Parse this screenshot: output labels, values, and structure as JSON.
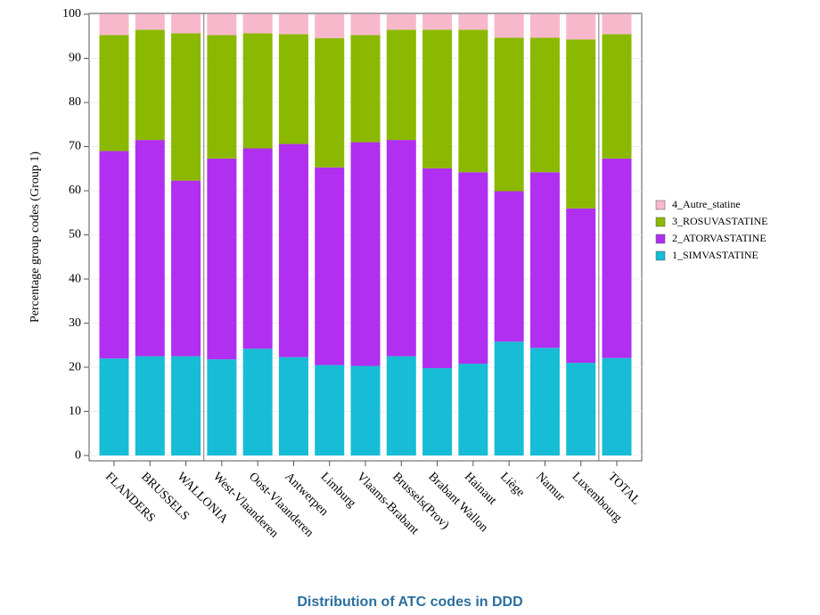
{
  "chart_data": {
    "type": "stacked_bar",
    "title": "Distribution of ATC codes in DDD",
    "y_label": "Percentage group codes (Group 1)",
    "categories": [
      "FLANDERS",
      "BRUSSELS",
      "WALLONIA",
      "West-Vlaanderen",
      "Oost-Vlaanderen",
      "Antwerpen",
      "Limburg",
      "Vlaams-Brabant",
      "Brussels(Prov)",
      "Brabant Wallon",
      "Hainaut",
      "Liège",
      "Namur",
      "Luxembourg",
      "TOTAL"
    ],
    "series": [
      {
        "name": "1_SIMVASTATINE",
        "color": "#17bcd6",
        "values": [
          22,
          22.5,
          22.5,
          21.8,
          24.2,
          22.3,
          20.5,
          20.3,
          22.5,
          19.8,
          20.8,
          25.8,
          24.4,
          21,
          22.1
        ]
      },
      {
        "name": "2_ATORVASTATINE",
        "color": "#b02ff0",
        "values": [
          47,
          49,
          39.8,
          45.5,
          45.4,
          48.3,
          44.8,
          50.7,
          49,
          45.3,
          43.4,
          34.1,
          39.8,
          35,
          45.2
        ]
      },
      {
        "name": "3_ROSUVASTATINE",
        "color": "#8bb800",
        "values": [
          26.3,
          25,
          33.4,
          28,
          26.1,
          24.9,
          29.3,
          24.3,
          25,
          31.4,
          32.3,
          34.8,
          30.5,
          38.3,
          28.2
        ]
      },
      {
        "name": "4_Autre_statine",
        "color": "#f8b8cc",
        "values": [
          4.7,
          3.5,
          4.3,
          4.7,
          4.3,
          4.5,
          5.4,
          4.7,
          3.5,
          3.5,
          3.5,
          5.3,
          5.3,
          5.7,
          4.5
        ]
      }
    ],
    "ylim": [
      -1.2,
      100.2
    ],
    "yticks": [
      0,
      10,
      20,
      30,
      40,
      50,
      60,
      70,
      80,
      90,
      100
    ],
    "grid": true
  }
}
